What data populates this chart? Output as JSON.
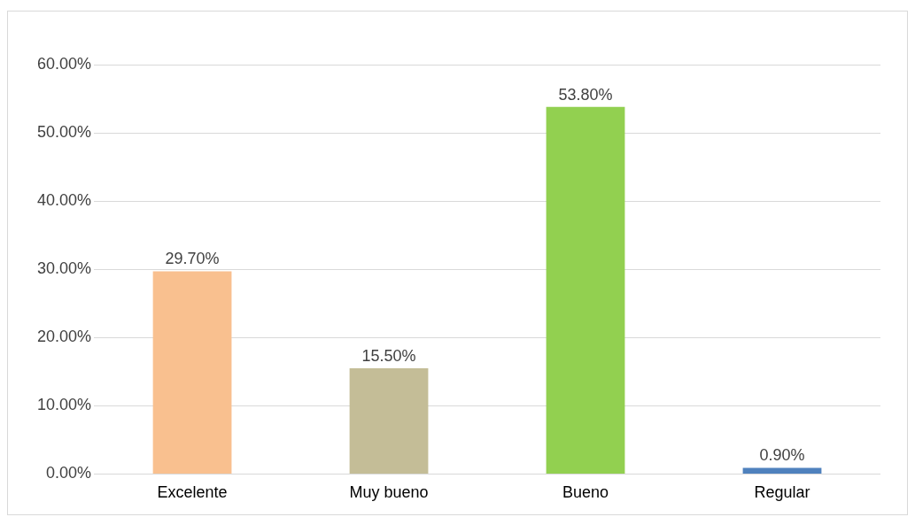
{
  "chart_data": {
    "type": "bar",
    "categories": [
      "Excelente",
      "Muy bueno",
      "Bueno",
      "Regular"
    ],
    "values": [
      29.7,
      15.5,
      53.8,
      0.9
    ],
    "colors": [
      "#f9c08f",
      "#c4bd97",
      "#92d050",
      "#4f81bd"
    ],
    "value_labels": [
      "29.70%",
      "15.50%",
      "53.80%",
      "0.90%"
    ],
    "ylim": [
      0,
      60
    ],
    "yticks": [
      {
        "value": 0,
        "label": "0.00%"
      },
      {
        "value": 10,
        "label": "10.00%"
      },
      {
        "value": 20,
        "label": "20.00%"
      },
      {
        "value": 30,
        "label": "30.00%"
      },
      {
        "value": 40,
        "label": "40.00%"
      },
      {
        "value": 50,
        "label": "50.00%"
      },
      {
        "value": 60,
        "label": "60.00%"
      }
    ],
    "grid": "y",
    "legend": false
  }
}
